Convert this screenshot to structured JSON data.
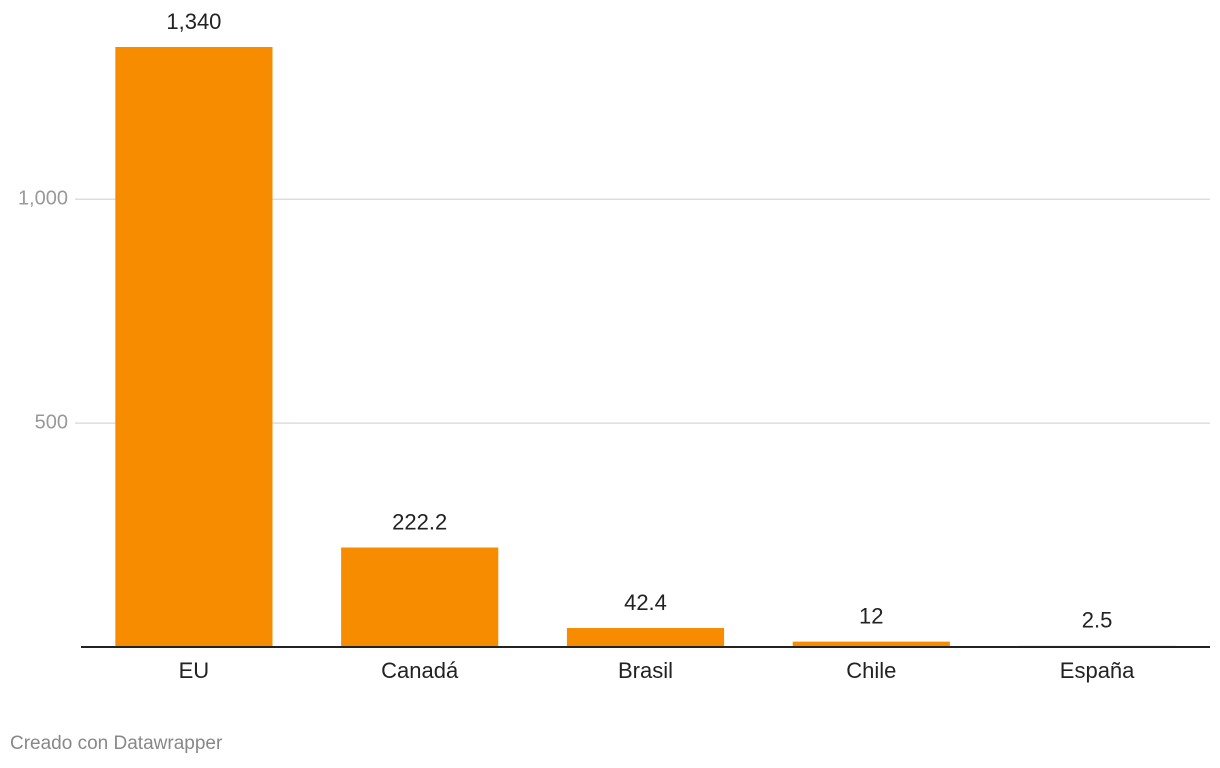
{
  "chart_data": {
    "type": "bar",
    "categories": [
      "EU",
      "Canadá",
      "Brasil",
      "Chile",
      "España"
    ],
    "values": [
      1340,
      222.2,
      42.4,
      12,
      2.5
    ],
    "value_labels": [
      "1,340",
      "222.2",
      "42.4",
      "12",
      "2.5"
    ],
    "color": "#f78c00",
    "ylim": [
      0,
      1340
    ],
    "yticks": [
      500,
      {
        "value": 1000,
        "label": "1,000"
      }
    ],
    "grid": true,
    "credit": "Creado con Datawrapper"
  }
}
